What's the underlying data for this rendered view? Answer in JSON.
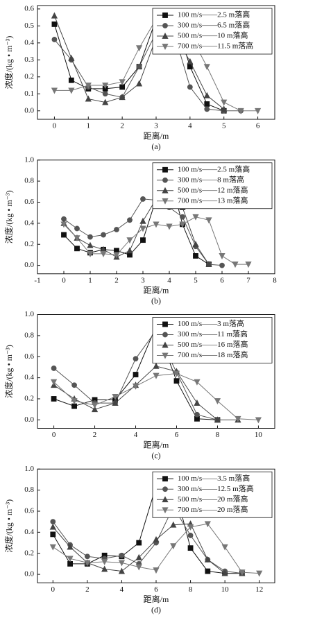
{
  "chart_data": [
    {
      "type": "line",
      "caption": "(a)",
      "x_label": "距离/m",
      "y_label": "浓度/(kg • m⁻³)",
      "legend": "upper right",
      "xlim": [
        -0.5,
        6.5
      ],
      "ylim": [
        -0.05,
        0.62
      ],
      "xticks": [
        0,
        1,
        2,
        3,
        4,
        5,
        6
      ],
      "yticks": [
        {
          "value": 0,
          "label": "0.0"
        },
        0.1,
        0.2,
        0.3,
        0.4,
        0.5,
        0.6
      ],
      "series": [
        {
          "name": "100 m/s——2.5 m落高",
          "color": "#111111",
          "marker": "square",
          "x": [
            0,
            0.5,
            1,
            1.5,
            2,
            2.5,
            3,
            3.5,
            4,
            4.5,
            5
          ],
          "values": [
            0.51,
            0.18,
            0.13,
            0.13,
            0.14,
            0.26,
            0.54,
            0.58,
            0.26,
            0.04,
            0.0
          ]
        },
        {
          "name": "300 m/s——6.5 m落高",
          "color": "#555555",
          "marker": "circle",
          "x": [
            0,
            0.5,
            1,
            1.5,
            2,
            2.5,
            3,
            3.5,
            4,
            4.5,
            5,
            5.5
          ],
          "values": [
            0.42,
            0.3,
            0.14,
            0.1,
            0.08,
            0.26,
            0.46,
            0.48,
            0.14,
            0.01,
            0.0,
            0.0
          ]
        },
        {
          "name": "500 m/s——10 m落高",
          "color": "#444444",
          "marker": "triangle-up",
          "x": [
            0,
            0.5,
            1,
            1.5,
            2,
            2.5,
            3,
            3.5,
            4,
            4.5,
            5
          ],
          "values": [
            0.56,
            0.31,
            0.07,
            0.05,
            0.08,
            0.16,
            0.43,
            0.47,
            0.29,
            0.09,
            0.01
          ]
        },
        {
          "name": "700 m/s——11.5 m落高",
          "color": "#777777",
          "marker": "triangle-down",
          "x": [
            0,
            0.5,
            1,
            1.5,
            2,
            2.5,
            3,
            3.5,
            4,
            4.5,
            5,
            5.5,
            6
          ],
          "values": [
            0.12,
            0.12,
            0.15,
            0.15,
            0.17,
            0.37,
            0.54,
            0.45,
            0.45,
            0.26,
            0.05,
            0.0,
            0.0
          ]
        }
      ]
    },
    {
      "type": "line",
      "caption": "(b)",
      "x_label": "距离/m",
      "y_label": "浓度/(kg • m⁻³)",
      "legend": "upper right",
      "xlim": [
        -1,
        8
      ],
      "ylim": [
        -0.08,
        1.0
      ],
      "xticks": [
        -1,
        0,
        1,
        2,
        3,
        4,
        5,
        6,
        7,
        8
      ],
      "yticks": [
        {
          "value": 0,
          "label": "0.0"
        },
        0.2,
        0.4,
        0.6,
        0.8,
        {
          "value": 1,
          "label": "1.0"
        }
      ],
      "series": [
        {
          "name": "100 m/s——2.5 m落高",
          "color": "#111111",
          "marker": "square",
          "x": [
            0,
            0.5,
            1,
            1.5,
            2,
            2.5,
            3,
            3.5,
            4,
            4.5,
            5,
            5.5
          ],
          "values": [
            0.29,
            0.16,
            0.12,
            0.15,
            0.14,
            0.1,
            0.24,
            0.63,
            0.87,
            0.39,
            0.09,
            0.01
          ]
        },
        {
          "name": "300 m/s——8 m落高",
          "color": "#555555",
          "marker": "circle",
          "x": [
            0,
            0.5,
            1,
            1.5,
            2,
            2.5,
            3,
            3.5,
            4,
            4.5,
            5,
            5.5,
            6
          ],
          "values": [
            0.44,
            0.35,
            0.27,
            0.29,
            0.34,
            0.43,
            0.63,
            0.62,
            0.55,
            0.46,
            0.18,
            0.01,
            0.0
          ]
        },
        {
          "name": "500 m/s——12 m落高",
          "color": "#444444",
          "marker": "triangle-up",
          "x": [
            0,
            0.5,
            1,
            1.5,
            2,
            2.5,
            3,
            3.5,
            4,
            4.5,
            5,
            5.5
          ],
          "values": [
            0.4,
            0.26,
            0.19,
            0.15,
            0.08,
            0.14,
            0.42,
            0.63,
            0.64,
            0.55,
            0.2,
            0.01
          ]
        },
        {
          "name": "700 m/s——13 m落高",
          "color": "#777777",
          "marker": "triangle-down",
          "x": [
            0,
            0.5,
            1,
            1.5,
            2,
            2.5,
            3,
            3.5,
            4,
            4.5,
            5,
            5.5,
            6,
            6.5,
            7
          ],
          "values": [
            0.39,
            0.26,
            0.11,
            0.11,
            0.1,
            0.24,
            0.35,
            0.39,
            0.37,
            0.39,
            0.46,
            0.43,
            0.09,
            0.01,
            0.01
          ]
        }
      ]
    },
    {
      "type": "line",
      "caption": "(c)",
      "x_label": "距离/m",
      "y_label": "浓度/(kg • m⁻³)",
      "legend": "upper right",
      "xlim": [
        -0.8,
        10.8
      ],
      "ylim": [
        -0.08,
        1.0
      ],
      "xticks": [
        0,
        2,
        4,
        6,
        8,
        10
      ],
      "yticks": [
        {
          "value": 0,
          "label": "0.0"
        },
        0.2,
        0.4,
        0.6,
        0.8,
        {
          "value": 1,
          "label": "1.0"
        }
      ],
      "series": [
        {
          "name": "100 m/s——3 m落高",
          "color": "#111111",
          "marker": "square",
          "x": [
            0,
            1,
            2,
            3,
            4,
            5,
            6,
            7,
            8
          ],
          "values": [
            0.2,
            0.13,
            0.19,
            0.19,
            0.43,
            0.89,
            0.37,
            0.01,
            0.0
          ]
        },
        {
          "name": "300 m/s——11 m落高",
          "color": "#555555",
          "marker": "circle",
          "x": [
            0,
            1,
            2,
            3,
            4,
            5,
            6,
            7,
            8
          ],
          "values": [
            0.49,
            0.33,
            0.16,
            0.16,
            0.58,
            0.85,
            0.45,
            0.05,
            0.0
          ]
        },
        {
          "name": "500 m/s——16 m落高",
          "color": "#444444",
          "marker": "triangle-up",
          "x": [
            0,
            1,
            2,
            3,
            4,
            5,
            6,
            7,
            8,
            9
          ],
          "values": [
            0.33,
            0.2,
            0.1,
            0.16,
            0.33,
            0.51,
            0.46,
            0.16,
            0.0,
            0.0
          ]
        },
        {
          "name": "700 m/s——18 m落高",
          "color": "#777777",
          "marker": "triangle-down",
          "x": [
            0,
            1,
            2,
            3,
            4,
            5,
            6,
            7,
            8,
            9,
            10
          ],
          "values": [
            0.36,
            0.18,
            0.14,
            0.22,
            0.32,
            0.42,
            0.44,
            0.36,
            0.18,
            0.01,
            0.0
          ]
        }
      ]
    },
    {
      "type": "line",
      "caption": "(d)",
      "x_label": "距离/m",
      "y_label": "浓度/(kg • m⁻³)",
      "legend": "upper right",
      "xlim": [
        -0.9,
        12.9
      ],
      "ylim": [
        -0.08,
        1.0
      ],
      "xticks": [
        0,
        2,
        4,
        6,
        8,
        10,
        12
      ],
      "yticks": [
        {
          "value": 0,
          "label": "0.0"
        },
        0.2,
        0.4,
        0.6,
        0.8,
        {
          "value": 1,
          "label": "1.0"
        }
      ],
      "series": [
        {
          "name": "100 m/s——3.5 m落高",
          "color": "#111111",
          "marker": "square",
          "x": [
            0,
            1,
            2,
            3,
            4,
            5,
            6,
            7,
            8,
            9,
            10,
            11
          ],
          "values": [
            0.38,
            0.1,
            0.1,
            0.18,
            0.17,
            0.3,
            0.84,
            0.87,
            0.25,
            0.03,
            0.01,
            0.01
          ]
        },
        {
          "name": "300 m/s——12.5 m落高",
          "color": "#555555",
          "marker": "circle",
          "x": [
            0,
            1,
            2,
            3,
            4,
            5,
            6,
            7,
            8,
            9,
            10,
            11
          ],
          "values": [
            0.5,
            0.28,
            0.17,
            0.15,
            0.18,
            0.1,
            0.3,
            0.64,
            0.37,
            0.14,
            0.03,
            0.01
          ]
        },
        {
          "name": "500 m/s——20 m落高",
          "color": "#444444",
          "marker": "triangle-up",
          "x": [
            0,
            1,
            2,
            3,
            4,
            5,
            6,
            7,
            8,
            9,
            10,
            11
          ],
          "values": [
            0.45,
            0.26,
            0.11,
            0.05,
            0.03,
            0.16,
            0.33,
            0.47,
            0.48,
            0.14,
            0.01,
            0.01
          ]
        },
        {
          "name": "700 m/s——20 m落高",
          "color": "#777777",
          "marker": "triangle-down",
          "x": [
            0,
            1,
            2,
            3,
            4,
            5,
            6,
            7,
            8,
            9,
            10,
            11,
            12
          ],
          "values": [
            0.26,
            0.15,
            0.11,
            0.12,
            0.11,
            0.07,
            0.04,
            0.27,
            0.45,
            0.48,
            0.26,
            0.02,
            0.01
          ]
        }
      ]
    }
  ]
}
